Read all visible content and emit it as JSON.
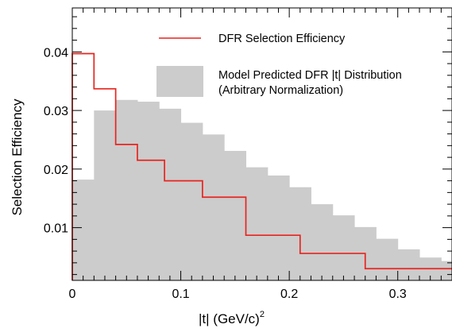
{
  "chart_data": {
    "type": "bar",
    "xlabel": "|t| (GeV/c)",
    "xlabel_superscript": "2",
    "ylabel": "Selection Efficiency",
    "xlim": [
      0,
      0.35
    ],
    "ylim": [
      0.001,
      0.0475
    ],
    "x_ticks": [
      {
        "value": 0,
        "label": "0"
      },
      {
        "value": 0.1,
        "label": "0.1"
      },
      {
        "value": 0.2,
        "label": "0.2"
      },
      {
        "value": 0.3,
        "label": "0.3"
      }
    ],
    "y_ticks": [
      {
        "value": 0.01,
        "label": "0.01"
      },
      {
        "value": 0.02,
        "label": "0.02"
      },
      {
        "value": 0.03,
        "label": "0.03"
      },
      {
        "value": 0.04,
        "label": "0.04"
      }
    ],
    "grid": false,
    "legend_position": "top-right",
    "series": [
      {
        "name": "DFR Selection Efficiency",
        "kind": "step-line",
        "color": "#e8241f",
        "bin_edges": [
          0,
          0.02,
          0.04,
          0.06,
          0.085,
          0.12,
          0.16,
          0.21,
          0.27,
          0.35
        ],
        "values": [
          0.0397,
          0.0337,
          0.0242,
          0.0215,
          0.018,
          0.0152,
          0.0087,
          0.0056,
          0.003
        ]
      },
      {
        "name": "Model Predicted DFR |t| Distribution",
        "name_line2": "(Arbitrary Normalization)",
        "kind": "filled-histogram",
        "color": "#cccccc",
        "bin_edges": [
          0,
          0.02,
          0.04,
          0.06,
          0.08,
          0.1,
          0.12,
          0.14,
          0.16,
          0.18,
          0.2,
          0.22,
          0.24,
          0.26,
          0.28,
          0.3,
          0.32,
          0.34,
          0.35
        ],
        "values": [
          0.0182,
          0.03,
          0.0318,
          0.0315,
          0.0303,
          0.0279,
          0.0259,
          0.0231,
          0.0203,
          0.0189,
          0.0169,
          0.014,
          0.0121,
          0.0101,
          0.0081,
          0.0063,
          0.0049,
          0.0043
        ]
      }
    ]
  }
}
